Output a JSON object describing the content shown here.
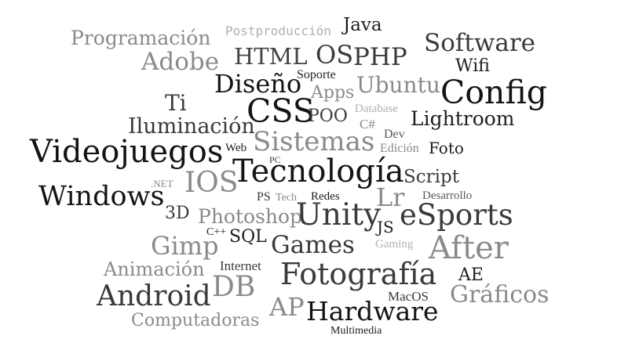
{
  "colors": {
    "background": "#ffffff",
    "dark": "#141414",
    "mid": "#3c3c3c",
    "light": "#8c8c8c",
    "pale": "#b4b4b4"
  },
  "words": {
    "programacion": "Programación",
    "postproduccion": "Postproducción",
    "java": "Java",
    "software": "Software",
    "html": "HTML",
    "os": "OS",
    "php": "PHP",
    "adobe": "Adobe",
    "wifi": "Wifi",
    "soporte": "Soporte",
    "diseno": "Diseño",
    "ubuntu": "Ubuntu",
    "config": "Config",
    "ti": "Ti",
    "apps": "Apps",
    "database": "Database",
    "css": "CSS",
    "poo": "POO",
    "csharp": "C#",
    "lightroom": "Lightroom",
    "iluminacion": "Iluminación",
    "dev": "Dev",
    "sistemas": "Sistemas",
    "videojuegos": "Videojuegos",
    "web": "Web",
    "edicion": "Edición",
    "foto": "Foto",
    "pc": "PC",
    "tecnologia": "Tecnología",
    "script": "Script",
    "net": ".NET",
    "ios": "IOS",
    "windows": "Windows",
    "ps": "PS",
    "tech": "Tech",
    "redes": "Redes",
    "lr": "Lr",
    "desarrollo": "Desarrollo",
    "3d": "3D",
    "photoshop": "Photoshop",
    "unity": "Unity",
    "esports": "eSports",
    "js": "JS",
    "cpp": "C++",
    "gimp": "Gimp",
    "sql": "SQL",
    "games": "Games",
    "gaming": "Gaming",
    "after": "After",
    "internet": "Internet",
    "animacion": "Animación",
    "fotografia": "Fotografía",
    "ae": "AE",
    "db": "DB",
    "android": "Android",
    "macos": "MacOS",
    "graficos": "Gráficos",
    "ap": "AP",
    "hardware": "Hardware",
    "computadoras": "Computadoras",
    "multimedia": "Multimedia"
  }
}
